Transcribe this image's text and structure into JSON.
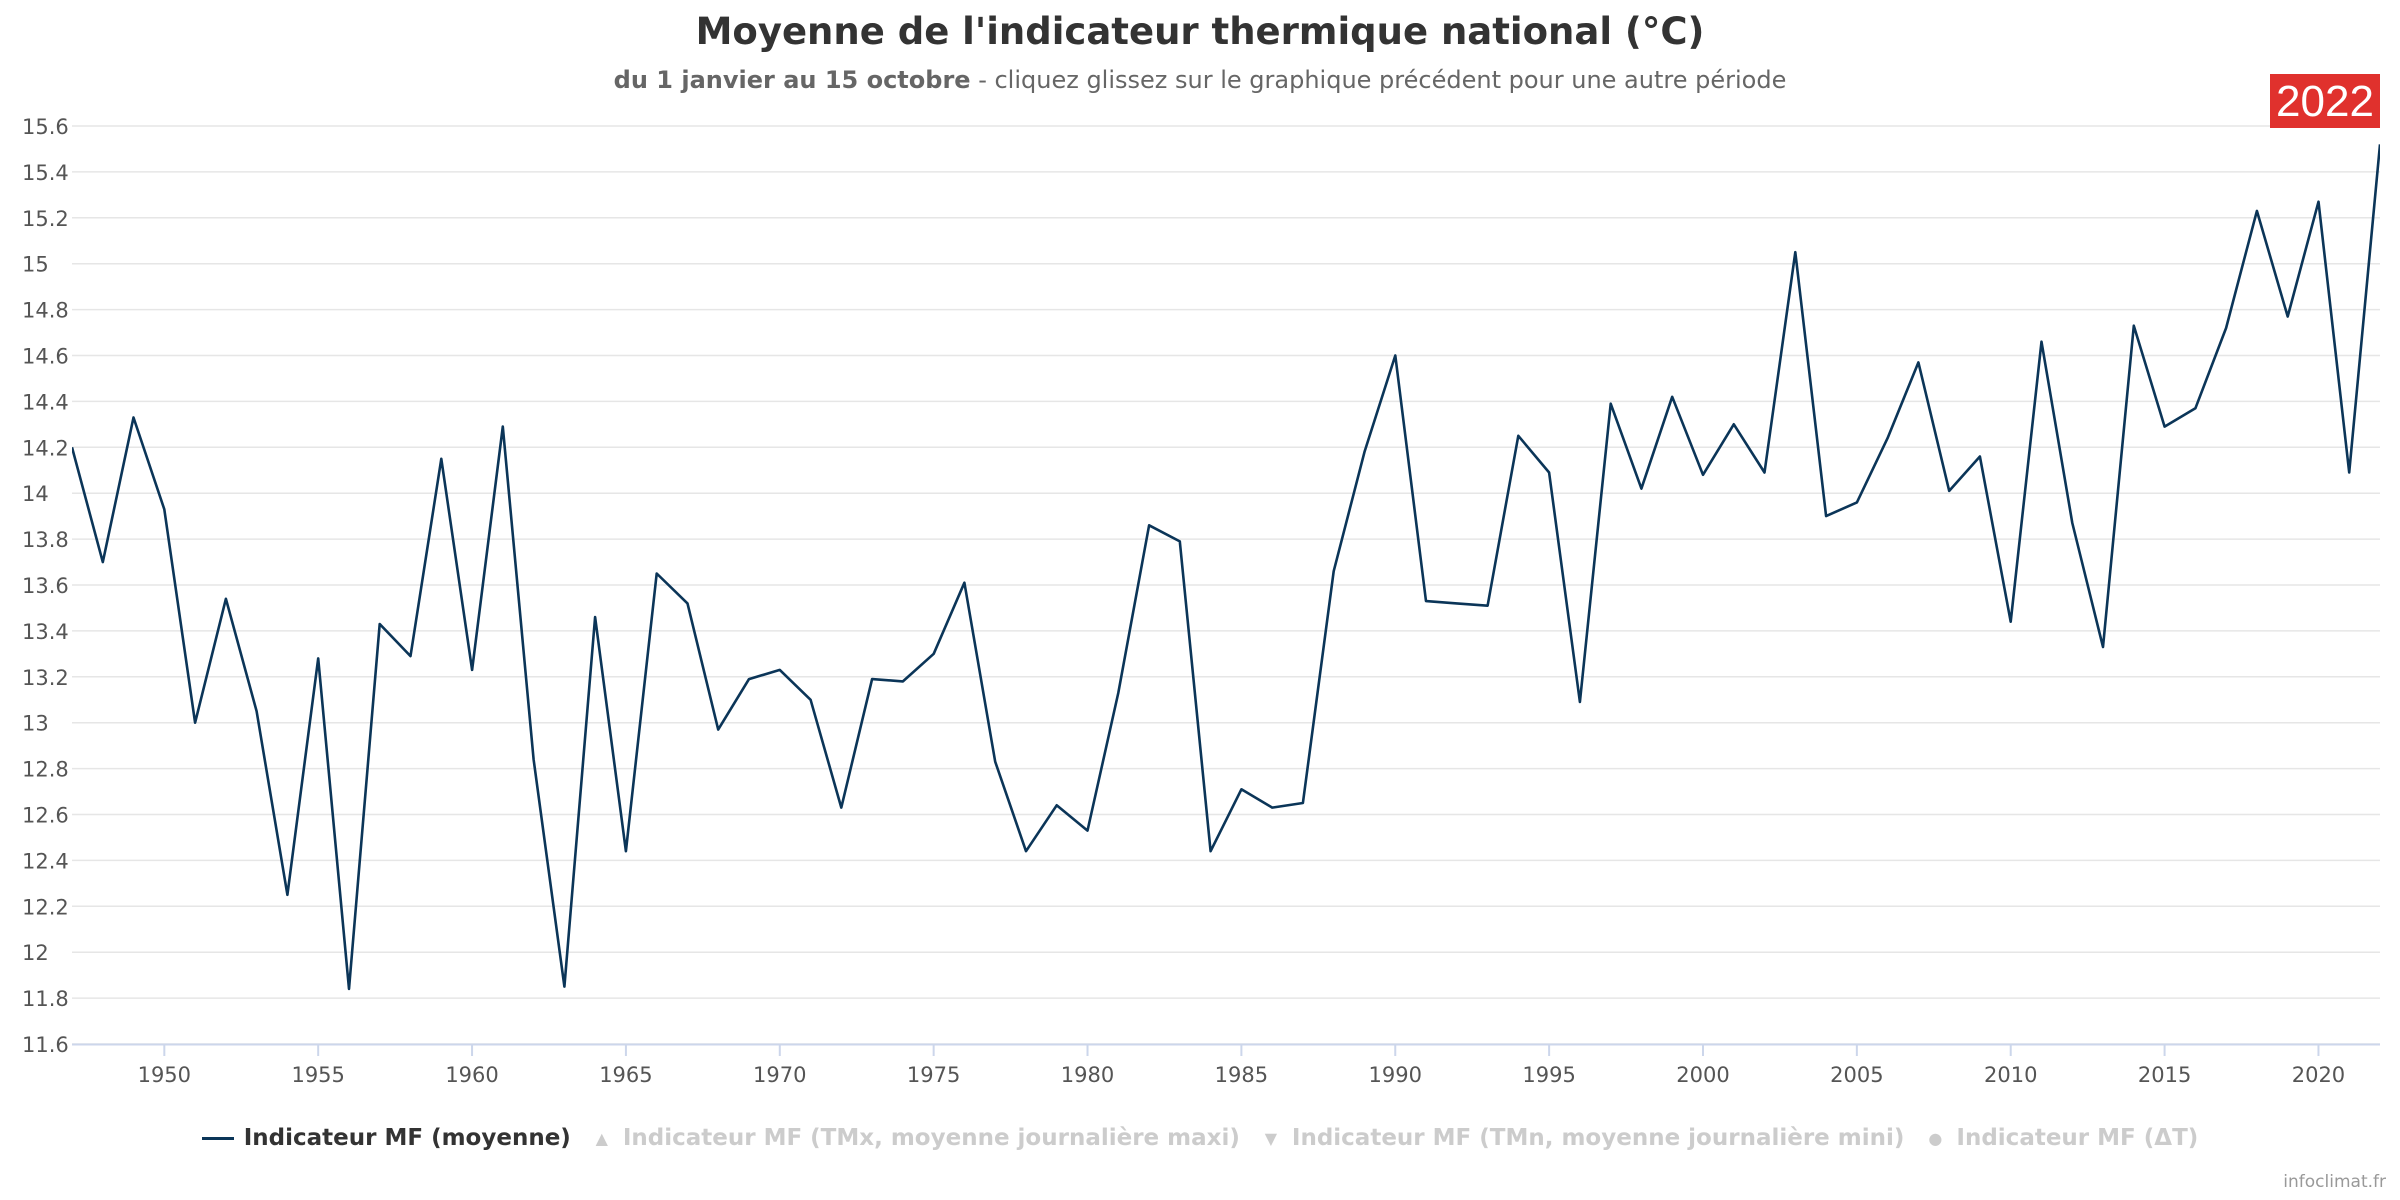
{
  "chart_data": {
    "type": "line",
    "title": "Moyenne de l'indicateur thermique national (°C)",
    "subtitle_bold": "du 1 janvier au 15 octobre",
    "subtitle_rest": " - cliquez glissez sur le graphique précédent pour une autre période",
    "ylim": [
      11.6,
      15.6
    ],
    "xlim": [
      1947,
      2022
    ],
    "yticks": [
      "11.6",
      "11.8",
      "12",
      "12.2",
      "12.4",
      "12.6",
      "12.8",
      "13",
      "13.2",
      "13.4",
      "13.6",
      "13.8",
      "14",
      "14.2",
      "14.4",
      "14.6",
      "14.8",
      "15",
      "15.2",
      "15.4",
      "15.6"
    ],
    "xticks": [
      "1950",
      "1955",
      "1960",
      "1965",
      "1970",
      "1975",
      "1980",
      "1985",
      "1990",
      "1995",
      "2000",
      "2005",
      "2010",
      "2015",
      "2020"
    ],
    "grid": true,
    "highlight_label": "2022",
    "highlight_color": "#e0312d",
    "series": [
      {
        "name": "Indicateur MF (moyenne)",
        "color": "#0b3558",
        "x": [
          1947,
          1948,
          1949,
          1950,
          1951,
          1952,
          1953,
          1954,
          1955,
          1956,
          1957,
          1958,
          1959,
          1960,
          1961,
          1962,
          1963,
          1964,
          1965,
          1966,
          1967,
          1968,
          1969,
          1970,
          1971,
          1972,
          1973,
          1974,
          1975,
          1976,
          1977,
          1978,
          1979,
          1980,
          1981,
          1982,
          1983,
          1984,
          1985,
          1986,
          1987,
          1988,
          1989,
          1990,
          1991,
          1992,
          1993,
          1994,
          1995,
          1996,
          1997,
          1998,
          1999,
          2000,
          2001,
          2002,
          2003,
          2004,
          2005,
          2006,
          2007,
          2008,
          2009,
          2010,
          2011,
          2012,
          2013,
          2014,
          2015,
          2016,
          2017,
          2018,
          2019,
          2020,
          2021,
          2022
        ],
        "values": [
          14.2,
          13.7,
          14.33,
          13.93,
          13.0,
          13.54,
          13.05,
          12.25,
          13.28,
          11.84,
          13.43,
          13.29,
          14.15,
          13.23,
          14.29,
          12.84,
          11.85,
          13.46,
          12.44,
          13.65,
          13.52,
          12.97,
          13.19,
          13.23,
          13.1,
          12.63,
          13.19,
          13.18,
          13.3,
          13.61,
          12.83,
          12.44,
          12.64,
          12.53,
          13.13,
          13.86,
          13.79,
          12.44,
          12.71,
          12.63,
          12.65,
          13.66,
          14.18,
          14.6,
          13.53,
          13.52,
          13.51,
          14.25,
          14.09,
          13.09,
          14.39,
          14.02,
          14.42,
          14.08,
          14.3,
          14.09,
          15.05,
          13.9,
          13.96,
          14.24,
          14.57,
          14.01,
          14.16,
          13.44,
          14.66,
          13.87,
          13.33,
          14.73,
          14.29,
          14.37,
          14.72,
          15.23,
          14.77,
          15.27,
          14.09,
          15.52
        ]
      }
    ]
  },
  "legend": {
    "items": [
      {
        "label": "Indicateur MF (moyenne)",
        "symbol": "line"
      },
      {
        "label": "Indicateur MF (TMx, moyenne journalière maxi)",
        "symbol": "▲"
      },
      {
        "label": "Indicateur MF (TMn, moyenne journalière mini)",
        "symbol": "▼"
      },
      {
        "label": "Indicateur MF (ΔT)",
        "symbol": "●"
      }
    ]
  },
  "credit": "infoclimat.fr"
}
